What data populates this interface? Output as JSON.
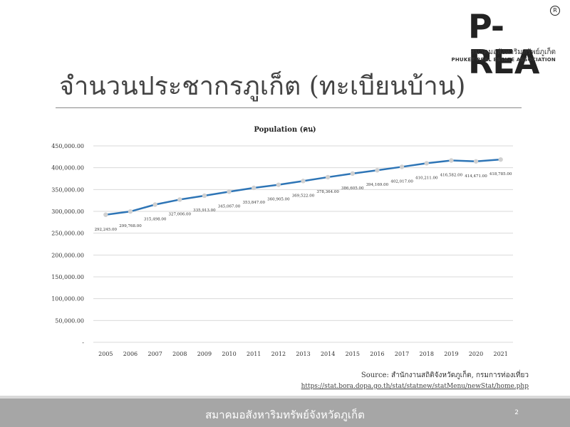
{
  "logo": {
    "main": "P-REA",
    "registered": "R",
    "thai": "สมาคมอสังหาริมทรัพย์ภูเก็ต",
    "english": "PHUKET REAL ESTATE ASSOCIATION"
  },
  "slide": {
    "title": "จำนวนประชากรภูเก็ต (ทะเบียนบ้าน)",
    "page_number": "2"
  },
  "source": {
    "text": "Source: สำนักงานสถิติจังหวัดภูเก็ต, กรมการท่องเที่ยว",
    "url": "https://stat.bora.dopa.go.th/stat/statnew/statMenu/newStat/home.php"
  },
  "footer": {
    "text": "สมาคมอสังหาริมทรัพย์จังหวัดภูเก็ต"
  },
  "colors": {
    "line": "#2e75b6",
    "marker": "#d0d0d0",
    "footer": "#a6a6a6"
  },
  "chart_data": {
    "type": "line",
    "title": "Population (คน)",
    "xlabel": "",
    "ylabel": "",
    "categories": [
      "2005",
      "2006",
      "2007",
      "2008",
      "2009",
      "2010",
      "2011",
      "2012",
      "2013",
      "2014",
      "2015",
      "2016",
      "2017",
      "2018",
      "2019",
      "2020",
      "2021"
    ],
    "series": [
      {
        "values": [
          292245,
          299768,
          315498,
          327006,
          335913,
          345067,
          353847,
          360905,
          369522,
          378364,
          386605,
          394169,
          402017,
          410211,
          416582,
          414471,
          418785
        ]
      }
    ],
    "data_labels": [
      "292,245.00",
      "299,768.00",
      "315,498.00",
      "327,006.00",
      "335,913.00",
      "345,067.00",
      "353,847.00",
      "360,905.00",
      "369,522.00",
      "378,364.00",
      "386,605.00",
      "394,169.00",
      "402,017.00",
      "410,211.00",
      "416,582.00",
      "414,471.00",
      "418,785.00"
    ],
    "yticks": [
      0,
      50000,
      100000,
      150000,
      200000,
      250000,
      300000,
      350000,
      400000,
      450000
    ],
    "ytick_labels": [
      "-",
      "50,000.00",
      "100,000.00",
      "150,000.00",
      "200,000.00",
      "250,000.00",
      "300,000.00",
      "350,000.00",
      "400,000.00",
      "450,000.00"
    ],
    "ylim": [
      0,
      450000
    ],
    "grid": true,
    "legend": "none"
  }
}
